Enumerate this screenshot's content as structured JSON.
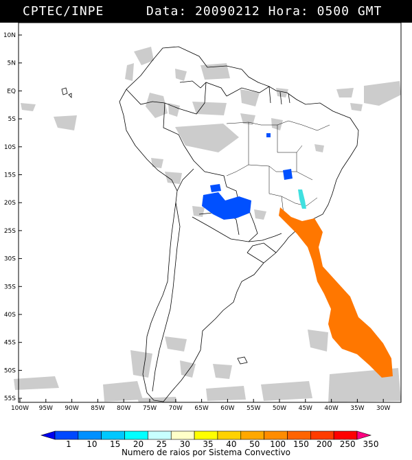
{
  "header": {
    "org": "CPTEC/INPE",
    "date_label": "Data:",
    "date_value": "20090212",
    "time_label": "Hora:",
    "time_value": "0500",
    "timezone": "GMT"
  },
  "map": {
    "lat_labels": [
      "10N",
      "5N",
      "EQ",
      "5S",
      "10S",
      "15S",
      "20S",
      "25S",
      "30S",
      "35S",
      "40S",
      "45S",
      "50S",
      "55S"
    ],
    "lon_labels": [
      "100W",
      "95W",
      "90W",
      "85W",
      "80W",
      "75W",
      "70W",
      "65W",
      "60W",
      "55W",
      "50W",
      "45W",
      "40W",
      "35W",
      "30W"
    ],
    "colors": {
      "cloud": "#cccccc",
      "cluster_blue": "#0050ff",
      "cluster_cyan": "#40e0e0",
      "cluster_orange": "#ff7700",
      "boundary": "#000000"
    }
  },
  "legend": {
    "values": [
      "1",
      "10",
      "15",
      "20",
      "25",
      "30",
      "35",
      "40",
      "50",
      "100",
      "150",
      "200",
      "250",
      "350"
    ],
    "colors": [
      "#0000ee",
      "#0048ff",
      "#0090ff",
      "#00c8ff",
      "#00ffff",
      "#c8ffff",
      "#ffffc8",
      "#ffff00",
      "#ffd200",
      "#ffa800",
      "#ff8c00",
      "#ff6400",
      "#ff3c00",
      "#ff0000",
      "#ff0080"
    ],
    "caption": "Numero de raios por Sistema Convectivo"
  }
}
